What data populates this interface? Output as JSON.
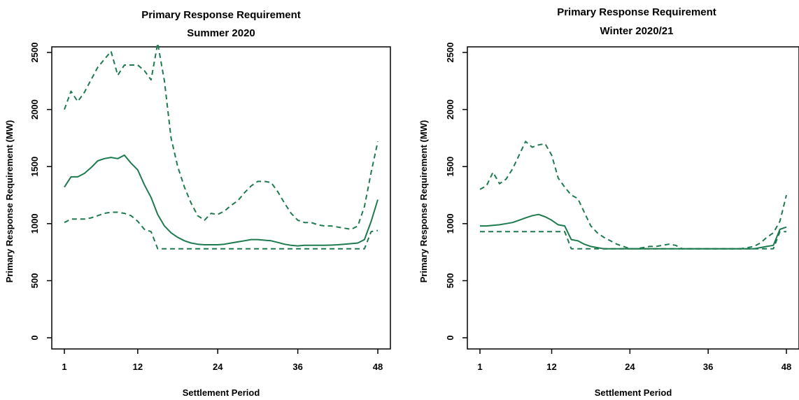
{
  "colors": {
    "series": "#1e7a4f",
    "axis": "#000000"
  },
  "chart_data": [
    {
      "type": "line",
      "title": "Primary Response Requirement",
      "subtitle": "Summer 2020",
      "xlabel": "Settlement Period",
      "ylabel": "Primary Response Requirement (MW)",
      "xlim": [
        1,
        48
      ],
      "ylim": [
        0,
        2500
      ],
      "xticks": [
        1,
        12,
        24,
        36,
        48
      ],
      "yticks": [
        0,
        500,
        1000,
        1500,
        2000,
        2500
      ],
      "grid": false,
      "series": [
        {
          "style": "dashed",
          "values": [
            2000,
            2160,
            2070,
            2150,
            2260,
            2370,
            2440,
            2510,
            2300,
            2390,
            2390,
            2390,
            2340,
            2260,
            2580,
            2250,
            1750,
            1500,
            1320,
            1180,
            1070,
            1030,
            1090,
            1080,
            1110,
            1160,
            1200,
            1270,
            1330,
            1370,
            1370,
            1360,
            1280,
            1180,
            1090,
            1030,
            1010,
            1010,
            990,
            980,
            980,
            970,
            960,
            950,
            980,
            1150,
            1450,
            1720
          ]
        },
        {
          "style": "solid",
          "values": [
            1320,
            1410,
            1410,
            1440,
            1490,
            1550,
            1570,
            1580,
            1570,
            1600,
            1530,
            1470,
            1340,
            1230,
            1080,
            980,
            920,
            880,
            850,
            830,
            820,
            815,
            815,
            815,
            820,
            830,
            840,
            850,
            860,
            860,
            855,
            850,
            835,
            820,
            810,
            805,
            810,
            810,
            810,
            810,
            812,
            815,
            820,
            825,
            830,
            860,
            1020,
            1210
          ]
        },
        {
          "style": "dashed",
          "values": [
            1010,
            1040,
            1040,
            1040,
            1050,
            1070,
            1090,
            1100,
            1100,
            1090,
            1070,
            1020,
            950,
            930,
            780,
            780,
            780,
            780,
            780,
            780,
            780,
            780,
            780,
            780,
            780,
            780,
            780,
            780,
            780,
            780,
            780,
            780,
            780,
            780,
            780,
            780,
            780,
            780,
            780,
            780,
            780,
            780,
            780,
            780,
            780,
            780,
            930,
            940
          ]
        }
      ]
    },
    {
      "type": "line",
      "title": "Primary Response Requirement",
      "subtitle": "Winter 2020/21",
      "xlabel": "Settlement Period",
      "ylabel": "Primary Response Requirement (MW)",
      "xlim": [
        1,
        48
      ],
      "ylim": [
        0,
        2500
      ],
      "xticks": [
        1,
        12,
        24,
        36,
        48
      ],
      "yticks": [
        0,
        500,
        1000,
        1500,
        2000,
        2500
      ],
      "grid": false,
      "series": [
        {
          "style": "dashed",
          "values": [
            1300,
            1330,
            1450,
            1350,
            1390,
            1480,
            1600,
            1720,
            1670,
            1690,
            1700,
            1600,
            1400,
            1320,
            1250,
            1220,
            1100,
            980,
            920,
            880,
            850,
            820,
            800,
            780,
            780,
            790,
            800,
            800,
            810,
            820,
            810,
            780,
            780,
            780,
            780,
            780,
            780,
            780,
            780,
            780,
            780,
            790,
            800,
            830,
            880,
            920,
            1020,
            1250
          ]
        },
        {
          "style": "solid",
          "values": [
            980,
            980,
            985,
            990,
            1000,
            1010,
            1030,
            1050,
            1070,
            1080,
            1060,
            1030,
            990,
            980,
            860,
            850,
            820,
            800,
            790,
            780,
            780,
            780,
            780,
            780,
            780,
            780,
            780,
            780,
            780,
            780,
            780,
            780,
            780,
            780,
            780,
            780,
            780,
            780,
            780,
            780,
            780,
            780,
            780,
            790,
            800,
            810,
            950,
            970
          ]
        },
        {
          "style": "dashed",
          "values": [
            930,
            930,
            930,
            930,
            930,
            930,
            930,
            930,
            930,
            930,
            930,
            930,
            930,
            930,
            780,
            780,
            780,
            780,
            780,
            780,
            780,
            780,
            780,
            780,
            780,
            780,
            780,
            780,
            780,
            780,
            780,
            780,
            780,
            780,
            780,
            780,
            780,
            780,
            780,
            780,
            780,
            780,
            780,
            780,
            780,
            780,
            930,
            930
          ]
        }
      ]
    }
  ]
}
